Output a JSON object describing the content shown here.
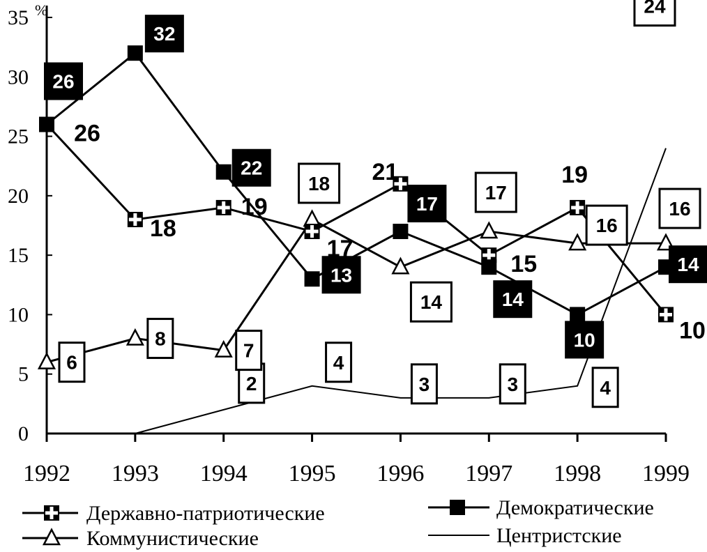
{
  "chart_data": {
    "type": "line",
    "unit": "%",
    "ylim": [
      0,
      35
    ],
    "yticks": [
      "0",
      "5",
      "10",
      "15",
      "20",
      "25",
      "30",
      "35"
    ],
    "categories": [
      "1992",
      "1993",
      "1994",
      "1995",
      "1996",
      "1997",
      "1998",
      "1999"
    ],
    "grid": false,
    "legend_position": "bottom",
    "series": [
      {
        "key": "patriotic",
        "name": "Державно-патриотические",
        "marker": "cross",
        "values": [
          26,
          18,
          19,
          17,
          21,
          15,
          19,
          10
        ],
        "labels": [
          "26",
          "18",
          "19",
          "17",
          "21",
          "15",
          "19",
          "10"
        ],
        "label_style": "plain"
      },
      {
        "key": "democratic",
        "name": "Демократические",
        "marker": "filled-square",
        "values": [
          26,
          32,
          22,
          13,
          17,
          14,
          10,
          14
        ],
        "labels": [
          "26",
          "32",
          "22",
          "13",
          "17",
          "14",
          "10",
          "14"
        ],
        "label_style": "black-box"
      },
      {
        "key": "communist",
        "name": "Коммунистические",
        "marker": "triangle",
        "values": [
          6,
          8,
          7,
          18,
          14,
          17,
          16,
          16
        ],
        "labels": [
          "6",
          "8",
          "7",
          "18",
          "14",
          "17",
          "16",
          "16"
        ],
        "label_style": "white-box"
      },
      {
        "key": "centrist",
        "name": "Центристские",
        "marker": "none",
        "values": [
          null,
          0,
          2,
          4,
          3,
          3,
          4,
          24
        ],
        "labels": [
          null,
          null,
          "2",
          "4",
          "3",
          "3",
          "4",
          "24"
        ],
        "label_style": "white-box"
      }
    ]
  }
}
